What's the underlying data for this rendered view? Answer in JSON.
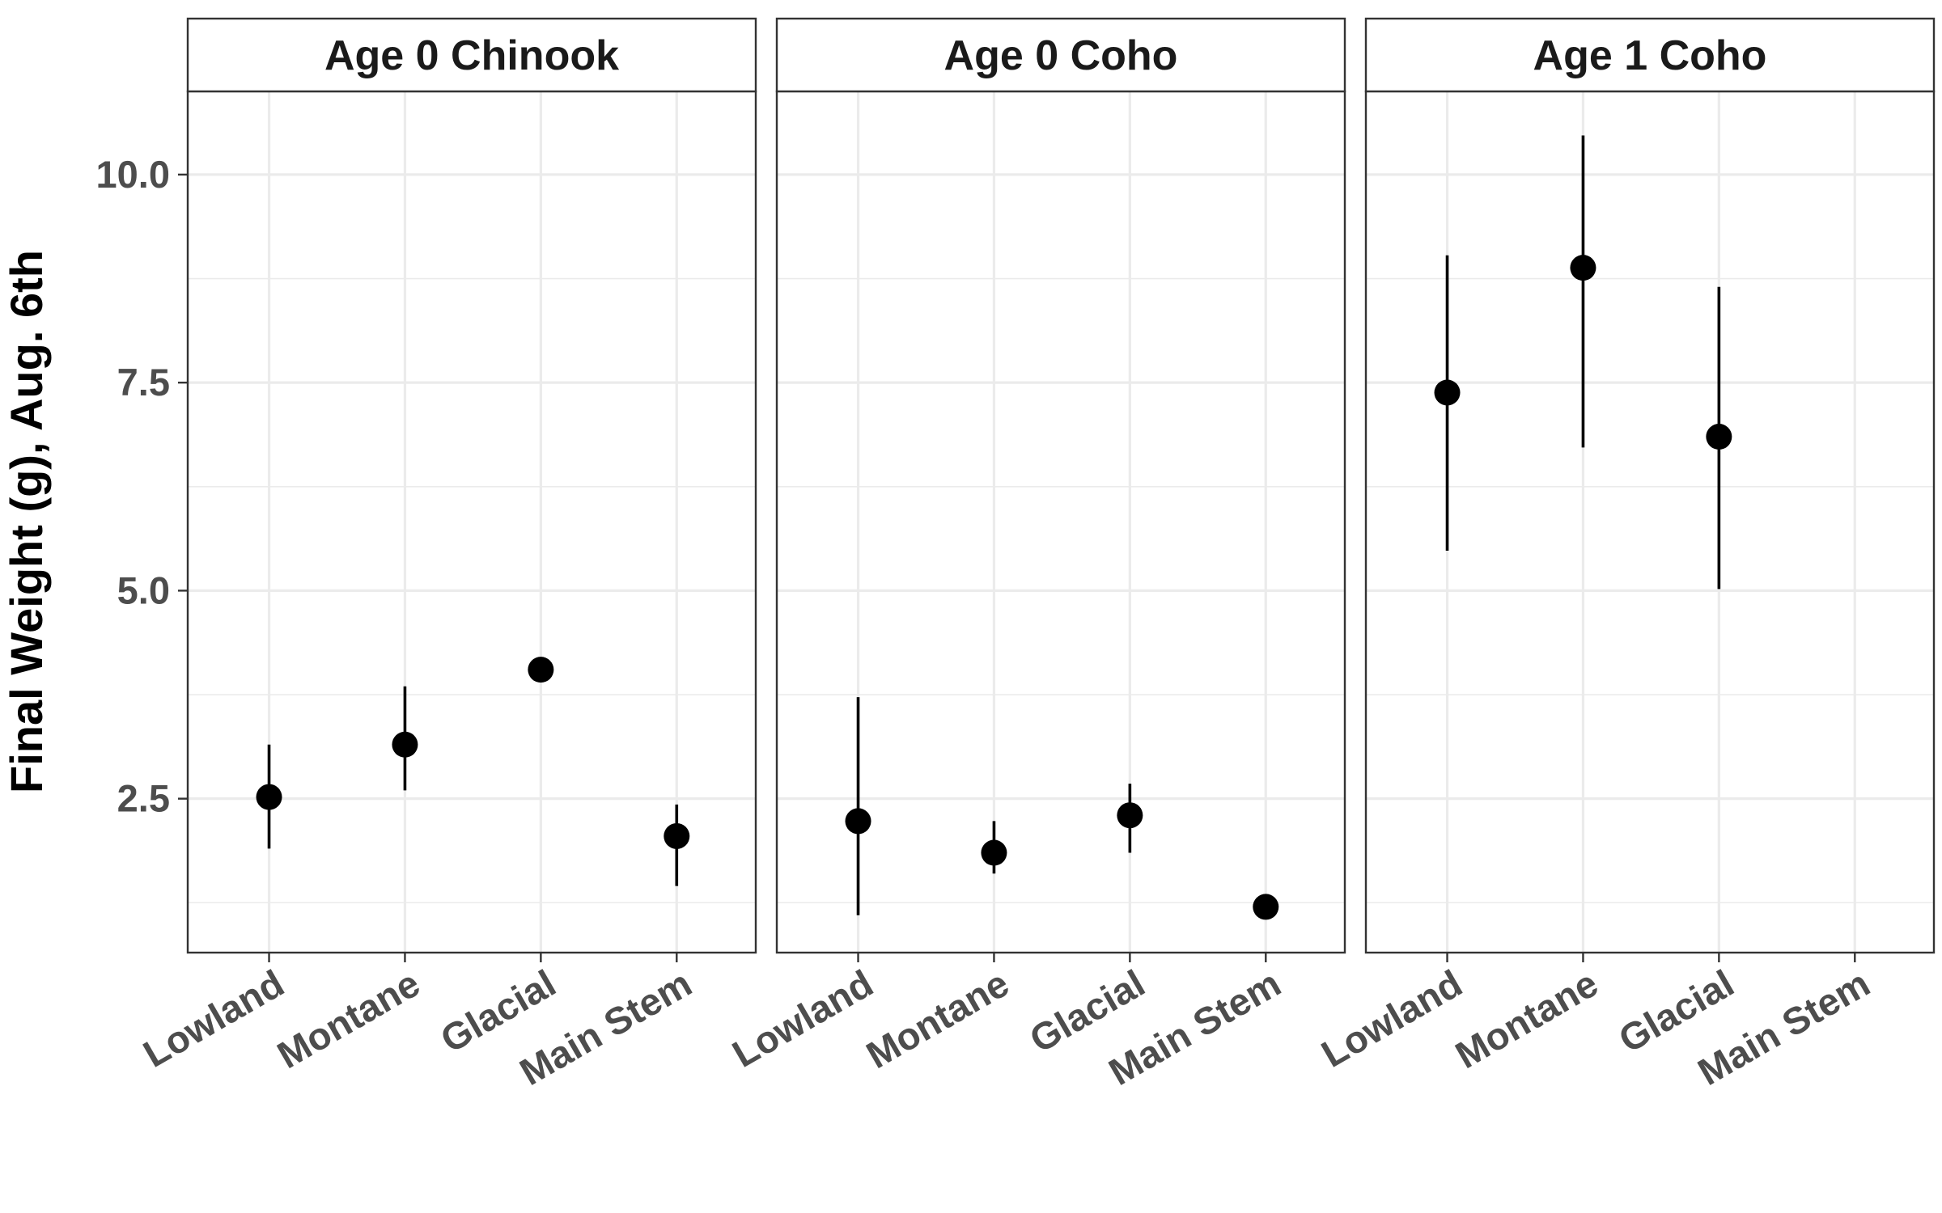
{
  "chart_data": {
    "type": "scatter",
    "subtype": "point-range faceted",
    "title": "",
    "xlabel": "",
    "ylabel": "Final Weight (g), Aug. 6th",
    "ylim": [
      0.65,
      11.0
    ],
    "yticks": [
      2.5,
      5.0,
      7.5,
      10.0
    ],
    "ytick_labels": [
      "2.5",
      "5.0",
      "7.5",
      "10.0"
    ],
    "categories": [
      "Lowland",
      "Montane",
      "Glacial",
      "Main Stem"
    ],
    "grid": true,
    "legend": "none",
    "colors": {
      "point": "#000000",
      "panel_border": "#333333",
      "grid_major": "#ebebeb",
      "strip_background": "#ffffff"
    },
    "facets": [
      {
        "name": "Age 0 Chinook",
        "points": [
          {
            "x": "Lowland",
            "y": 2.52,
            "ymin": 1.9,
            "ymax": 3.15
          },
          {
            "x": "Montane",
            "y": 3.15,
            "ymin": 2.6,
            "ymax": 3.85
          },
          {
            "x": "Glacial",
            "y": 4.05,
            "ymin": null,
            "ymax": null
          },
          {
            "x": "Main Stem",
            "y": 2.05,
            "ymin": 1.45,
            "ymax": 2.43
          }
        ]
      },
      {
        "name": "Age 0 Coho",
        "points": [
          {
            "x": "Lowland",
            "y": 2.23,
            "ymin": 1.1,
            "ymax": 3.72
          },
          {
            "x": "Montane",
            "y": 1.85,
            "ymin": 1.6,
            "ymax": 2.23
          },
          {
            "x": "Glacial",
            "y": 2.3,
            "ymin": 1.85,
            "ymax": 2.68
          },
          {
            "x": "Main Stem",
            "y": 1.2,
            "ymin": null,
            "ymax": null
          }
        ]
      },
      {
        "name": "Age 1 Coho",
        "points": [
          {
            "x": "Lowland",
            "y": 7.38,
            "ymin": 5.48,
            "ymax": 9.03
          },
          {
            "x": "Montane",
            "y": 8.88,
            "ymin": 6.72,
            "ymax": 10.47
          },
          {
            "x": "Glacial",
            "y": 6.85,
            "ymin": 5.02,
            "ymax": 8.65
          }
        ]
      }
    ]
  }
}
